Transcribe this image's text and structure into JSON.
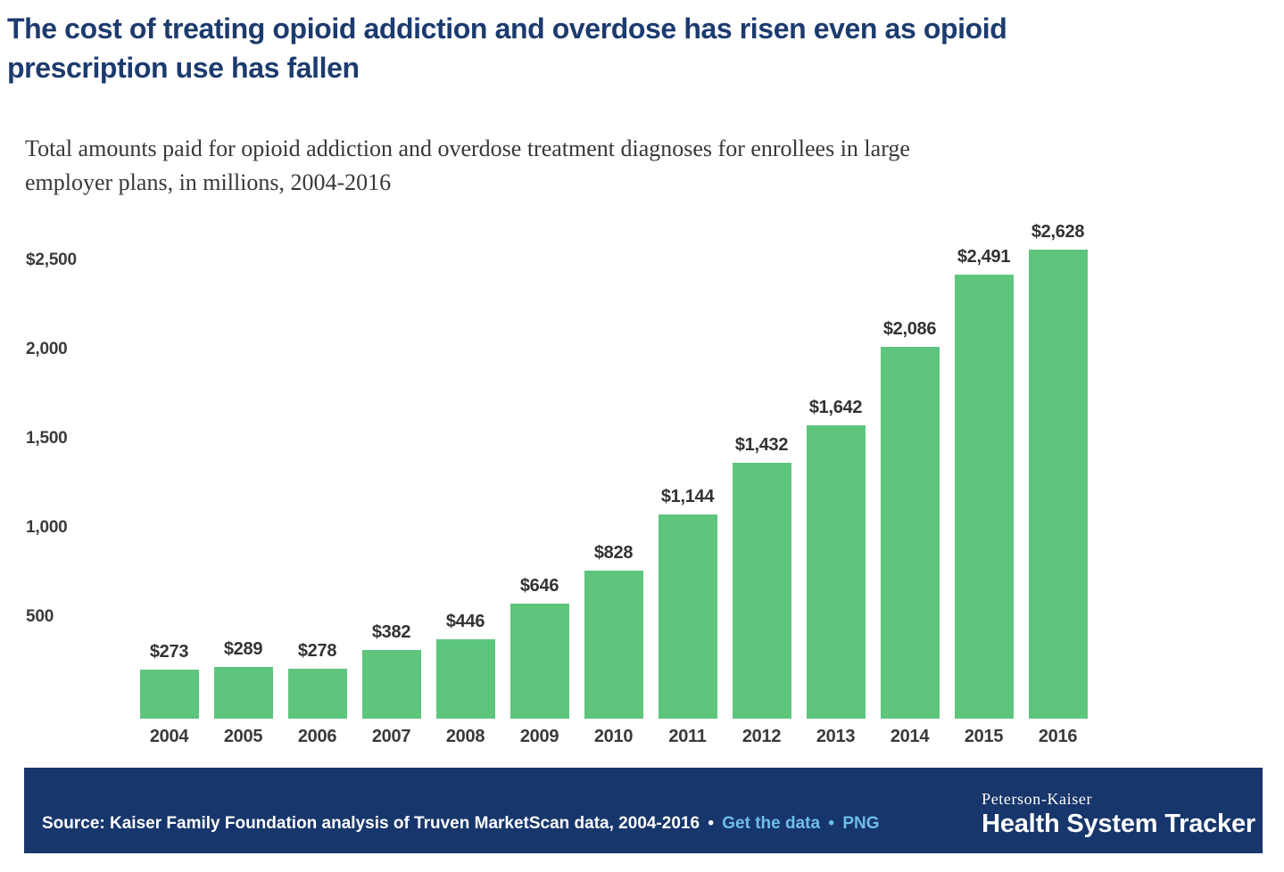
{
  "page": {
    "title": "The cost of treating opioid addiction and overdose has risen even as opioid\nprescription use has fallen",
    "subtitle": "Total amounts paid for opioid addiction and overdose treatment diagnoses for enrollees in large\nemployer plans, in millions, 2004-2016"
  },
  "chart_data": {
    "type": "bar",
    "title": "The cost of treating opioid addiction and overdose has risen even as opioid prescription use has fallen",
    "subtitle": "Total amounts paid for opioid addiction and overdose treatment diagnoses for enrollees in large employer plans, in millions, 2004-2016",
    "categories": [
      "2004",
      "2005",
      "2006",
      "2007",
      "2008",
      "2009",
      "2010",
      "2011",
      "2012",
      "2013",
      "2014",
      "2015",
      "2016"
    ],
    "values": [
      273,
      289,
      278,
      382,
      446,
      646,
      828,
      1144,
      1432,
      1642,
      2086,
      2491,
      2628
    ],
    "bar_labels": [
      "$273",
      "$289",
      "$278",
      "$382",
      "$446",
      "$646",
      "$828",
      "$1,144",
      "$1,432",
      "$1,642",
      "$2,086",
      "$2,491",
      "$2,628"
    ],
    "xlabel": "",
    "ylabel": "",
    "y_ticks": [
      {
        "label": "$2,500",
        "value": 2500
      },
      {
        "label": "2,000",
        "value": 2000
      },
      {
        "label": "1,500",
        "value": 1500
      },
      {
        "label": "1,000",
        "value": 1000
      },
      {
        "label": "500",
        "value": 500
      }
    ],
    "ylim": [
      0,
      2790
    ],
    "grid": false,
    "legend": false,
    "bar_color": "#5EC57D"
  },
  "footer": {
    "source_text": "Source: Kaiser Family Foundation analysis of Truven MarketScan data, 2004-2016",
    "separator1": "•",
    "link_get_data": "Get the data",
    "separator2": "•",
    "link_png": "PNG",
    "brand_top": "Peterson-Kaiser",
    "brand_bottom": "Health System Tracker",
    "background_color": "#17366B",
    "link_color": "#6FBDEA",
    "text_color": "#FFFFFF"
  },
  "colors": {
    "title_navy": "#1C3B6E",
    "bar_green": "#5EC57D",
    "label_gray": "#3A3A3A"
  }
}
